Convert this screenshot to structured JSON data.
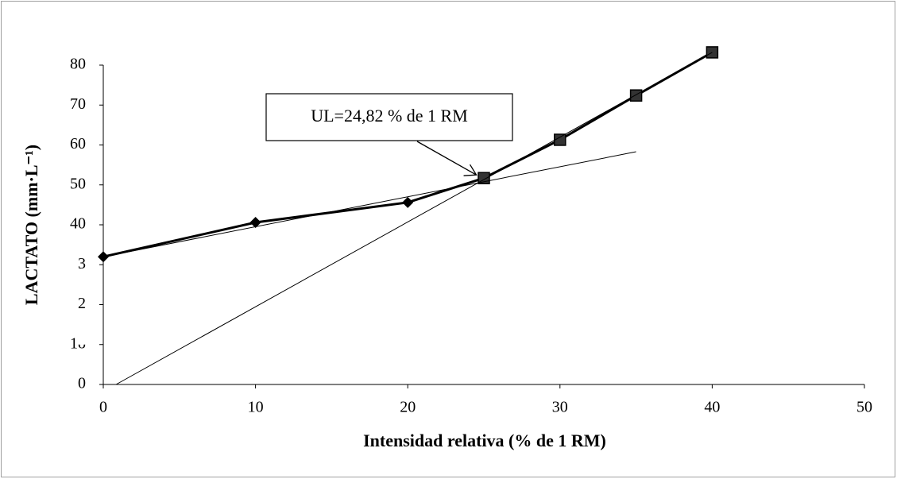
{
  "chart_data": {
    "type": "line",
    "xlabel": "Intensidad relativa (% de 1 RM)",
    "ylabel": "LACTATO (mm·L⁻¹)",
    "xlim": [
      0,
      50
    ],
    "xticks": [
      0,
      10,
      20,
      30,
      40,
      50
    ],
    "ylim": [
      0,
      80
    ],
    "yticks": [
      0,
      {
        "value": 10,
        "label": "1ᴗ"
      },
      {
        "value": 20,
        "label": "2"
      },
      {
        "value": 30,
        "label": "3"
      },
      40,
      50,
      60,
      70,
      80
    ],
    "grid": false,
    "series": [
      {
        "color": "#000000",
        "marker": "diamond",
        "line_width": 3,
        "x": [
          0,
          10,
          20,
          25
        ],
        "values": [
          32.0,
          40.6,
          45.6,
          51.7
        ]
      },
      {
        "color": "#000000",
        "marker": "square",
        "line_width": 3,
        "x": [
          25,
          30,
          35,
          40
        ],
        "values": [
          51.7,
          61.3,
          72.4,
          83.2
        ]
      },
      {
        "color": "#000000",
        "marker": "none",
        "line_width": 1,
        "x": [
          0,
          35
        ],
        "values": [
          32.0,
          58.3
        ]
      },
      {
        "color": "#000000",
        "marker": "none",
        "line_width": 1,
        "x": [
          0.84,
          40
        ],
        "values": [
          0,
          83.2
        ]
      }
    ],
    "annotation": {
      "text": "UL=24,82 % de 1 RM",
      "x": 24.82,
      "y": 51.7
    }
  }
}
